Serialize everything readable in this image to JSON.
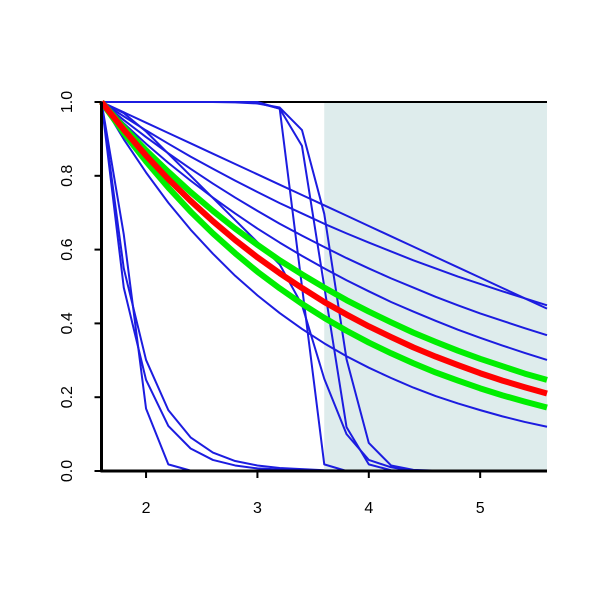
{
  "chart_data": {
    "type": "line",
    "x": [
      1.6,
      1.8,
      2.0,
      2.2,
      2.4,
      2.6,
      2.8,
      3.0,
      3.2,
      3.4,
      3.6,
      3.8,
      4.0,
      4.2,
      4.4,
      4.6,
      4.8,
      5.0,
      5.2,
      5.4,
      5.6
    ],
    "xlim": [
      1.6,
      5.6
    ],
    "ylim": [
      0,
      1
    ],
    "xticks": [
      2,
      3,
      4,
      5
    ],
    "yticks": [
      {
        "value": 0,
        "label": "0.0"
      },
      {
        "value": 0.2,
        "label": "0.2"
      },
      {
        "value": 0.4,
        "label": "0.4"
      },
      {
        "value": 0.6,
        "label": "0.6"
      },
      {
        "value": 0.8,
        "label": "0.8"
      },
      {
        "value": 1,
        "label": "1.0"
      }
    ],
    "shaded_x": [
      3.6,
      5.6
    ],
    "shade_color": "#deecec",
    "series": [
      {
        "color": "#1c1ce0",
        "linewidth": 2,
        "values": [
          1,
          0.961,
          0.923,
          0.887,
          0.852,
          0.819,
          0.787,
          0.756,
          0.726,
          0.698,
          0.67,
          0.644,
          0.619,
          0.595,
          0.571,
          0.549,
          0.527,
          0.507,
          0.487,
          0.468,
          0.449
        ]
      },
      {
        "color": "#1c1ce0",
        "linewidth": 2,
        "values": [
          1,
          0.972,
          0.944,
          0.916,
          0.888,
          0.86,
          0.832,
          0.804,
          0.776,
          0.748,
          0.72,
          0.692,
          0.664,
          0.636,
          0.608,
          0.58,
          0.552,
          0.524,
          0.496,
          0.468,
          0.44
        ]
      },
      {
        "color": "#1c1ce0",
        "linewidth": 2,
        "values": [
          1,
          0.951,
          0.905,
          0.861,
          0.819,
          0.779,
          0.741,
          0.705,
          0.67,
          0.638,
          0.607,
          0.577,
          0.549,
          0.522,
          0.497,
          0.472,
          0.449,
          0.427,
          0.407,
          0.387,
          0.368
        ]
      },
      {
        "color": "#1c1ce0",
        "linewidth": 2,
        "values": [
          1,
          0.942,
          0.887,
          0.835,
          0.787,
          0.741,
          0.698,
          0.657,
          0.619,
          0.583,
          0.549,
          0.517,
          0.487,
          0.458,
          0.432,
          0.407,
          0.383,
          0.361,
          0.34,
          0.32,
          0.301
        ]
      },
      {
        "color": "#1c1ce0",
        "linewidth": 2,
        "values": [
          1,
          0.899,
          0.809,
          0.727,
          0.654,
          0.589,
          0.529,
          0.476,
          0.428,
          0.385,
          0.346,
          0.311,
          0.28,
          0.252,
          0.226,
          0.203,
          0.183,
          0.165,
          0.148,
          0.133,
          0.12
        ]
      },
      {
        "color": "#1c1ce0",
        "linewidth": 2,
        "values": [
          1,
          0.641,
          0.169,
          0.018,
          0.001,
          0,
          0,
          0,
          0,
          0,
          0,
          0,
          0,
          0,
          0,
          0,
          0,
          0,
          0,
          0,
          0
        ]
      },
      {
        "color": "#1c1ce0",
        "linewidth": 2,
        "values": [
          1,
          0.549,
          0.301,
          0.165,
          0.091,
          0.05,
          0.027,
          0.015,
          0.008,
          0.005,
          0.002,
          0.001,
          0,
          0,
          0,
          0,
          0,
          0,
          0,
          0,
          0
        ]
      },
      {
        "color": "#1c1ce0",
        "linewidth": 2,
        "values": [
          1,
          0.497,
          0.247,
          0.122,
          0.061,
          0.03,
          0.015,
          0.007,
          0.004,
          0.002,
          0.001,
          0,
          0,
          0,
          0,
          0,
          0,
          0,
          0,
          0,
          0
        ]
      },
      {
        "color": "#1c1ce0",
        "linewidth": 2,
        "values": [
          1,
          1,
          1,
          1,
          1,
          1,
          1,
          1,
          0.982,
          0.5,
          0.018,
          0,
          0,
          0,
          0,
          0,
          0,
          0,
          0,
          0,
          0
        ]
      },
      {
        "color": "#1c1ce0",
        "linewidth": 2,
        "values": [
          1,
          1,
          1,
          1,
          1,
          1,
          1,
          0.998,
          0.982,
          0.881,
          0.5,
          0.119,
          0.018,
          0.002,
          0,
          0,
          0,
          0,
          0,
          0,
          0
        ]
      },
      {
        "color": "#1c1ce0",
        "linewidth": 2,
        "values": [
          1,
          1,
          1,
          1,
          1,
          1,
          0.999,
          0.996,
          0.985,
          0.924,
          0.697,
          0.303,
          0.076,
          0.015,
          0.003,
          0.001,
          0,
          0,
          0,
          0,
          0
        ]
      },
      {
        "color": "#1c1ce0",
        "linewidth": 2,
        "values": [
          1,
          0.97,
          0.92,
          0.86,
          0.8,
          0.74,
          0.68,
          0.62,
          0.56,
          0.45,
          0.25,
          0.1,
          0.03,
          0.01,
          0,
          0,
          0,
          0,
          0,
          0,
          0
        ]
      },
      {
        "color": "#00ee00",
        "linewidth": 6,
        "values": [
          1,
          0.932,
          0.869,
          0.811,
          0.756,
          0.705,
          0.657,
          0.613,
          0.571,
          0.533,
          0.497,
          0.463,
          0.432,
          0.403,
          0.375,
          0.35,
          0.326,
          0.304,
          0.284,
          0.264,
          0.247
        ]
      },
      {
        "color": "#00ee00",
        "linewidth": 6,
        "values": [
          1,
          0.916,
          0.839,
          0.768,
          0.703,
          0.644,
          0.59,
          0.54,
          0.495,
          0.453,
          0.415,
          0.38,
          0.348,
          0.319,
          0.292,
          0.267,
          0.245,
          0.224,
          0.205,
          0.188,
          0.172
        ]
      },
      {
        "color": "#ff0000",
        "linewidth": 6,
        "values": [
          1,
          0.925,
          0.855,
          0.791,
          0.732,
          0.677,
          0.626,
          0.579,
          0.536,
          0.496,
          0.458,
          0.424,
          0.392,
          0.363,
          0.335,
          0.31,
          0.287,
          0.265,
          0.245,
          0.227,
          0.21
        ]
      }
    ]
  }
}
